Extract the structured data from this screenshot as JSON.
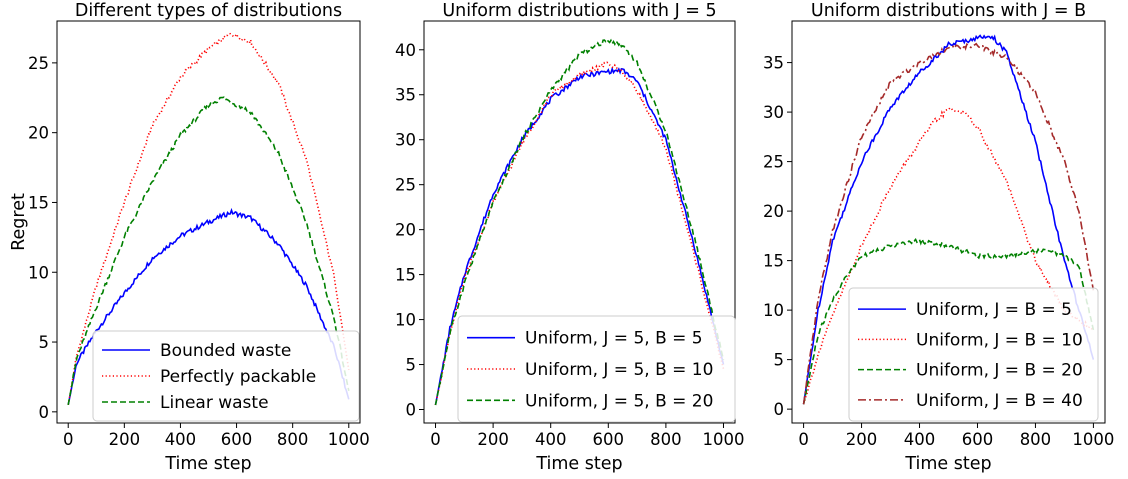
{
  "chart_data": [
    {
      "type": "line",
      "title": "Different types of distributions",
      "xlabel": "Time step",
      "ylabel": "Regret",
      "xlim": [
        -40,
        1040
      ],
      "ylim": [
        -0.8,
        28
      ],
      "xticks": [
        0,
        200,
        400,
        600,
        800,
        1000
      ],
      "yticks": [
        0,
        5,
        10,
        15,
        20,
        25
      ],
      "legend_position": "bottom-center",
      "series": [
        {
          "name": "Bounded waste",
          "color": "#0000ff",
          "style": "solid",
          "x": [
            0,
            30,
            100,
            200,
            300,
            400,
            500,
            580,
            650,
            750,
            850,
            950,
            1000
          ],
          "y": [
            0.5,
            3.5,
            5.8,
            8.5,
            11.0,
            12.6,
            13.6,
            14.3,
            13.9,
            12.0,
            9.0,
            4.5,
            0.9
          ]
        },
        {
          "name": "Perfectly packable",
          "color": "#ff0000",
          "style": "dotted",
          "x": [
            0,
            30,
            100,
            200,
            300,
            400,
            500,
            580,
            650,
            750,
            850,
            950,
            1000
          ],
          "y": [
            0.5,
            4.0,
            9.0,
            15.0,
            20.5,
            24.0,
            26.0,
            27.1,
            26.5,
            23.5,
            18.0,
            9.5,
            3.0
          ]
        },
        {
          "name": "Linear waste",
          "color": "#008000",
          "style": "dashed",
          "x": [
            0,
            30,
            100,
            200,
            300,
            400,
            500,
            550,
            650,
            750,
            850,
            950,
            1000
          ],
          "y": [
            0.5,
            3.8,
            7.5,
            12.5,
            16.5,
            19.8,
            22.0,
            22.5,
            21.5,
            18.5,
            13.5,
            6.5,
            1.5
          ]
        }
      ]
    },
    {
      "type": "line",
      "title": "Uniform distributions with J = 5",
      "xlabel": "Time step",
      "ylabel": "",
      "xlim": [
        -40,
        1040
      ],
      "ylim": [
        -1.5,
        43.2
      ],
      "xticks": [
        0,
        200,
        400,
        600,
        800,
        1000
      ],
      "yticks": [
        0,
        5,
        10,
        15,
        20,
        25,
        30,
        35,
        40
      ],
      "legend_position": "bottom-center",
      "series": [
        {
          "name": "Uniform, J = 5, B = 5",
          "color": "#0000ff",
          "style": "solid",
          "x": [
            0,
            50,
            100,
            200,
            300,
            400,
            500,
            600,
            650,
            700,
            800,
            900,
            1000
          ],
          "y": [
            0.5,
            9.0,
            15.0,
            24.0,
            30.0,
            34.5,
            37.0,
            37.6,
            37.7,
            36.5,
            30.0,
            18.0,
            5.0
          ]
        },
        {
          "name": "Uniform, J = 5, B = 10",
          "color": "#ff0000",
          "style": "dotted",
          "x": [
            0,
            50,
            100,
            200,
            300,
            400,
            500,
            600,
            650,
            700,
            800,
            900,
            1000
          ],
          "y": [
            0.5,
            8.5,
            14.5,
            23.0,
            29.5,
            35.0,
            37.2,
            38.5,
            37.5,
            35.5,
            29.0,
            17.0,
            4.5
          ]
        },
        {
          "name": "Uniform, J = 5, B = 20",
          "color": "#008000",
          "style": "dashed",
          "x": [
            0,
            50,
            100,
            200,
            300,
            400,
            500,
            600,
            650,
            700,
            800,
            900,
            1000
          ],
          "y": [
            0.5,
            8.5,
            14.0,
            23.0,
            30.0,
            35.5,
            39.5,
            41.1,
            40.5,
            38.5,
            31.0,
            19.0,
            5.5
          ]
        }
      ]
    },
    {
      "type": "line",
      "title": "Uniform distributions with J = B",
      "xlabel": "Time step",
      "ylabel": "",
      "xlim": [
        -40,
        1040
      ],
      "ylim": [
        -1.4,
        39.2
      ],
      "xticks": [
        0,
        200,
        400,
        600,
        800,
        1000
      ],
      "yticks": [
        0,
        5,
        10,
        15,
        20,
        25,
        30,
        35
      ],
      "legend_position": "bottom-center",
      "series": [
        {
          "name": "Uniform, J = B = 5",
          "color": "#0000ff",
          "style": "solid",
          "x": [
            0,
            50,
            100,
            200,
            300,
            400,
            500,
            600,
            650,
            700,
            800,
            900,
            1000
          ],
          "y": [
            0.5,
            10.0,
            17.0,
            25.0,
            30.5,
            34.0,
            36.8,
            37.5,
            37.7,
            36.0,
            27.0,
            15.0,
            5.0
          ]
        },
        {
          "name": "Uniform, J = B = 10",
          "color": "#ff0000",
          "style": "dotted",
          "x": [
            0,
            50,
            100,
            200,
            300,
            400,
            450,
            500,
            550,
            600,
            700,
            800,
            900,
            1000
          ],
          "y": [
            0.5,
            5.5,
            9.5,
            16.5,
            22.5,
            27.0,
            29.0,
            30.3,
            30.0,
            28.5,
            23.0,
            15.0,
            10.0,
            8.0
          ]
        },
        {
          "name": "Uniform, J = B = 20",
          "color": "#008000",
          "style": "dashed",
          "x": [
            0,
            50,
            100,
            150,
            200,
            300,
            400,
            500,
            600,
            700,
            800,
            850,
            900,
            950,
            1000
          ],
          "y": [
            0.5,
            7.5,
            11.0,
            13.5,
            15.5,
            16.5,
            17.0,
            16.5,
            15.5,
            15.5,
            16.0,
            16.0,
            15.5,
            14.5,
            8.0
          ]
        },
        {
          "name": "Uniform, J = B = 40",
          "color": "#a52a2a",
          "style": "dashdot",
          "x": [
            0,
            50,
            100,
            200,
            300,
            400,
            500,
            600,
            700,
            800,
            900,
            950,
            1000
          ],
          "y": [
            0.5,
            11.0,
            18.0,
            27.5,
            33.0,
            35.0,
            36.5,
            36.7,
            35.5,
            32.0,
            25.0,
            20.0,
            12.0
          ]
        }
      ]
    }
  ]
}
